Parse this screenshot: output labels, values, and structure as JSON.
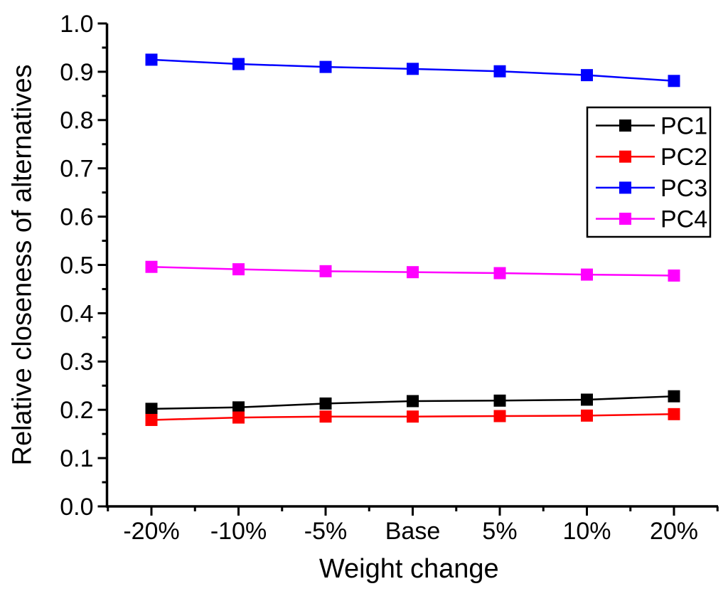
{
  "chart_data": {
    "type": "line",
    "title": "",
    "xlabel": "Weight change",
    "ylabel": "Relative closeness of alternatives",
    "categories": [
      "-20%",
      "-10%",
      "-5%",
      "Base",
      "5%",
      "10%",
      "20%"
    ],
    "series": [
      {
        "name": "PC1",
        "color": "#000000",
        "values": [
          0.202,
          0.205,
          0.213,
          0.218,
          0.219,
          0.221,
          0.228
        ]
      },
      {
        "name": "PC2",
        "color": "#ff0000",
        "values": [
          0.179,
          0.184,
          0.186,
          0.186,
          0.187,
          0.188,
          0.191
        ]
      },
      {
        "name": "PC3",
        "color": "#0000ff",
        "values": [
          0.925,
          0.916,
          0.91,
          0.906,
          0.901,
          0.893,
          0.881
        ]
      },
      {
        "name": "PC4",
        "color": "#ff00ff",
        "values": [
          0.496,
          0.491,
          0.487,
          0.485,
          0.483,
          0.48,
          0.478
        ]
      }
    ],
    "ylim": [
      0.0,
      1.0
    ],
    "y_major_step": 0.1,
    "y_minor_step": 0.05,
    "y_tick_labels": [
      "0.0",
      "0.1",
      "0.2",
      "0.3",
      "0.4",
      "0.5",
      "0.6",
      "0.7",
      "0.8",
      "0.9",
      "1.0"
    ],
    "x_minor_ticks": "midpoints-and-ends",
    "grid": false,
    "marker": "square",
    "legend": {
      "position": "upper-right",
      "entries": [
        "PC1",
        "PC2",
        "PC3",
        "PC4"
      ]
    },
    "axis_color": "#000000",
    "background": "#ffffff"
  }
}
